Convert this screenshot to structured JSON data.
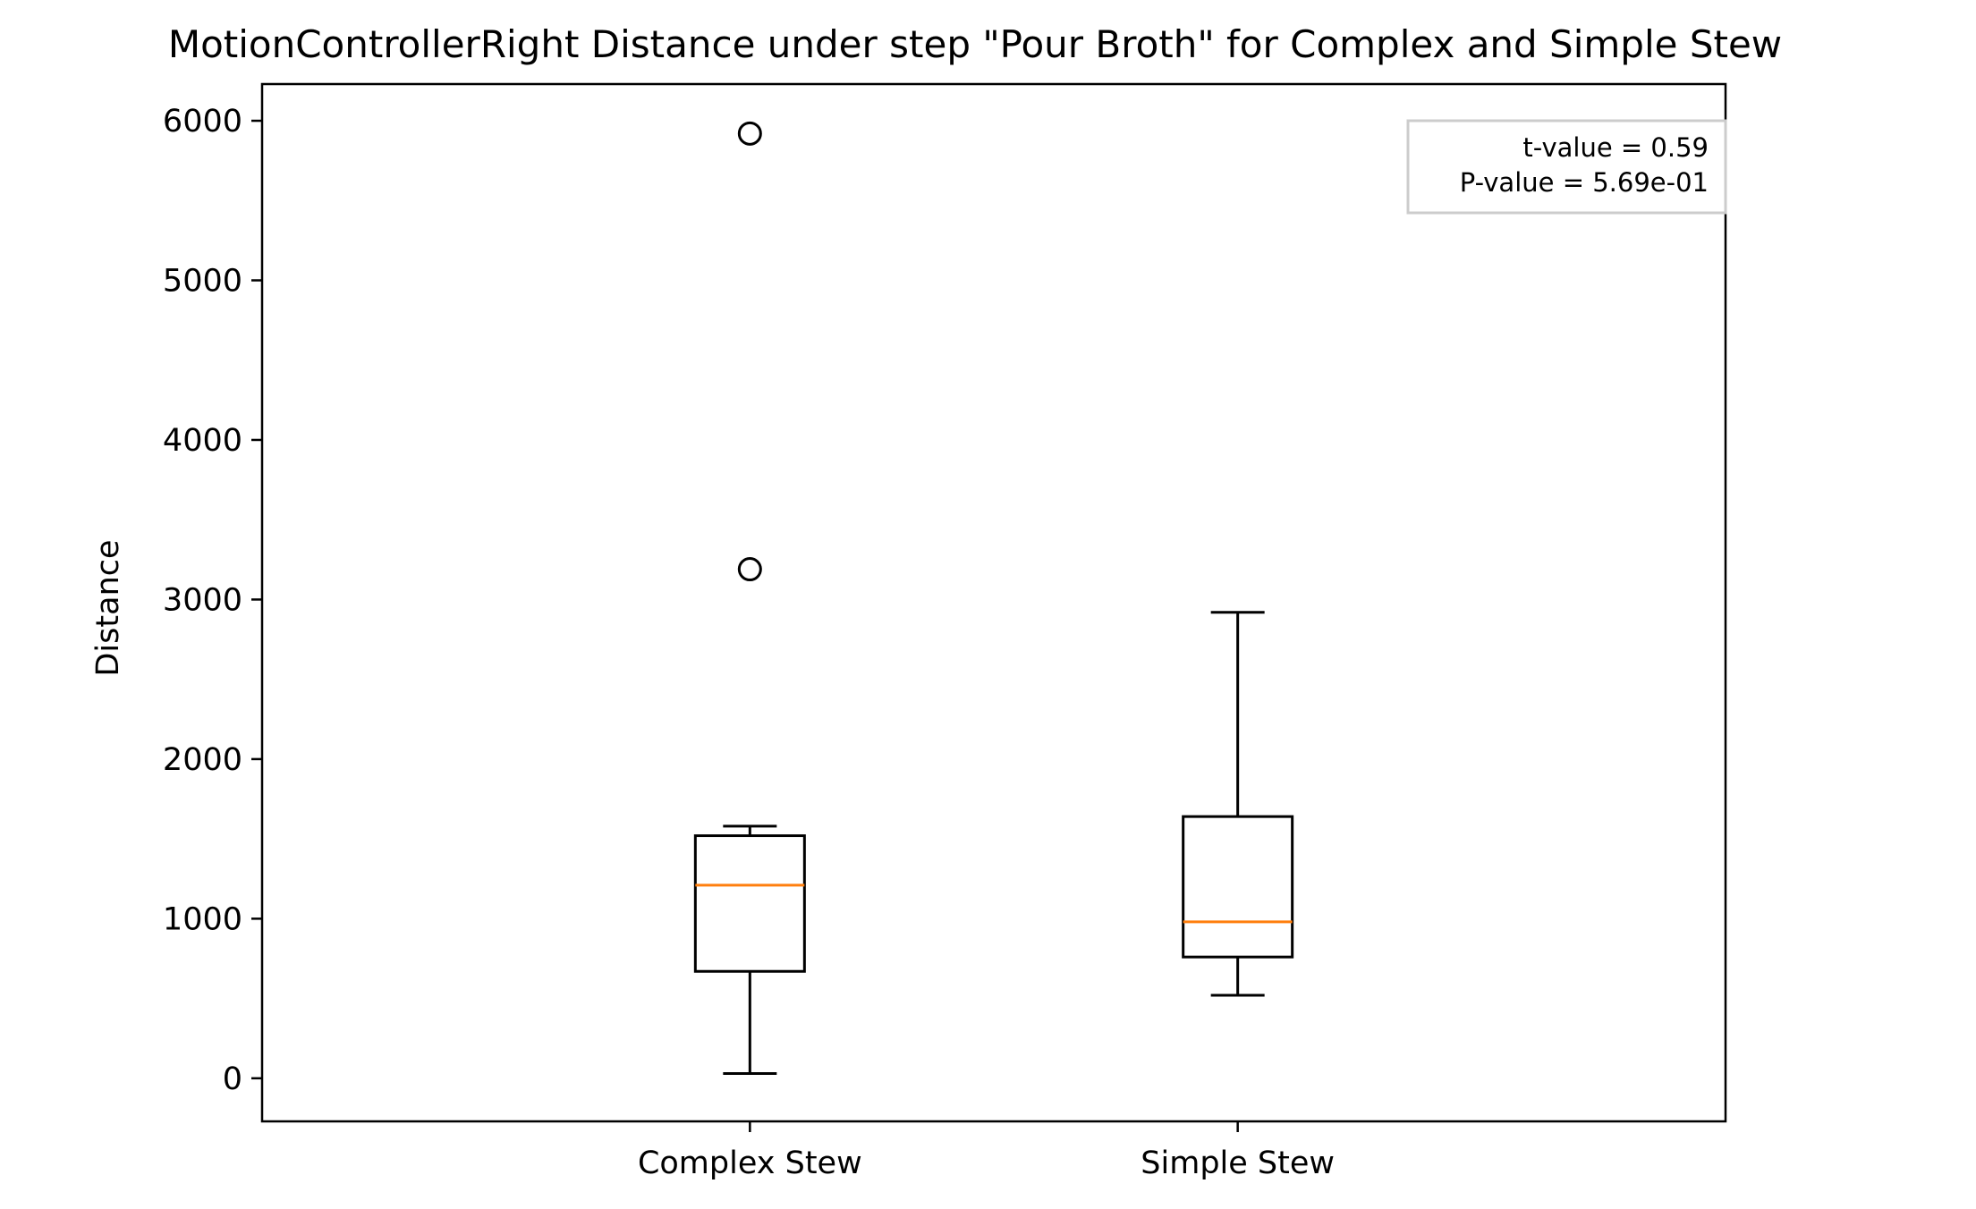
{
  "chart_data": {
    "type": "box",
    "title": "MotionControllerRight Distance under step \"Pour Broth\" for Complex and Simple Stew",
    "xlabel": "",
    "ylabel": "Distance",
    "ylim": [
      -270,
      6230
    ],
    "yticks": [
      0,
      1000,
      2000,
      3000,
      4000,
      5000,
      6000
    ],
    "yticklabels": [
      "0",
      "1000",
      "2000",
      "3000",
      "4000",
      "5000",
      "6000"
    ],
    "categories": [
      "Complex Stew",
      "Simple Stew"
    ],
    "boxes": [
      {
        "label": "Complex Stew",
        "whisker_low": 30,
        "q1": 670,
        "median": 1210,
        "q3": 1520,
        "whisker_high": 1580,
        "outliers": [
          3190,
          5920
        ]
      },
      {
        "label": "Simple Stew",
        "whisker_low": 520,
        "q1": 760,
        "median": 980,
        "q3": 1640,
        "whisker_high": 2920,
        "outliers": []
      }
    ],
    "annotation": {
      "lines": [
        "t-value = 0.59",
        "P-value = 5.69e-01"
      ],
      "placement": "top-right"
    },
    "grid": false,
    "colors": {
      "box": "#000000",
      "median": "#ff7f0e",
      "annotation_border": "#cccccc"
    }
  }
}
